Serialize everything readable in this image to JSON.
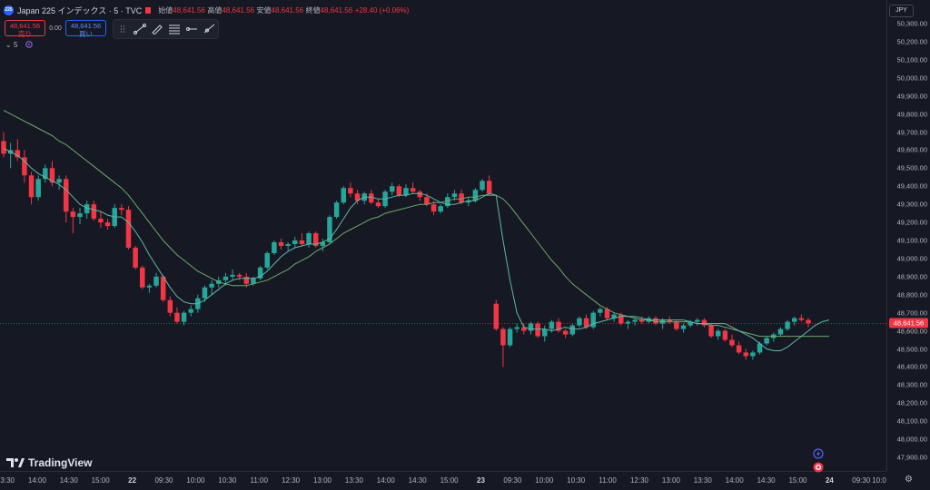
{
  "legend": {
    "badge": "225",
    "title": "Japan 225 インデックス · 5 · TVC",
    "open_label": "始値",
    "open_value": "48,641.56",
    "high_label": "高値",
    "high_value": "48,641.56",
    "low_label": "安値",
    "low_value": "48,641.56",
    "close_label": "終値",
    "close_value": "48,641.56",
    "change": "+28.40 (+0.06%)"
  },
  "trade": {
    "sell_price": "48,641.56",
    "sell_label": "売り",
    "spread": "0.00",
    "buy_price": "48,641.56",
    "buy_label": "買い"
  },
  "indicators": {
    "collapse_label": "5"
  },
  "currency": "JPY",
  "current_price": "48,641.56",
  "brand": "TradingView",
  "price_ticks": [
    "50,300.00",
    "50,200.00",
    "50,100.00",
    "50,000.00",
    "49,900.00",
    "49,800.00",
    "49,700.00",
    "49,600.00",
    "49,500.00",
    "49,400.00",
    "49,300.00",
    "49,200.00",
    "49,100.00",
    "49,000.00",
    "48,900.00",
    "48,800.00",
    "48,700.00",
    "48,600.00",
    "48,500.00",
    "48,400.00",
    "48,300.00",
    "48,200.00",
    "48,100.00",
    "48,000.00",
    "47,900.00"
  ],
  "time_ticks": [
    "13:30",
    "14:00",
    "14:30",
    "15:00",
    "22",
    "09:30",
    "10:00",
    "10:30",
    "11:00",
    "12:30",
    "13:00",
    "13:30",
    "14:00",
    "14:30",
    "15:00",
    "23",
    "09:30",
    "10:00",
    "10:30",
    "11:00",
    "12:30",
    "13:00",
    "13:30",
    "14:00",
    "14:30",
    "15:00",
    "24",
    "09:30",
    "10:0"
  ],
  "colors": {
    "up": "#26a69a",
    "down": "#f23645",
    "ma_fast": "#5fb7a8",
    "ma_slow": "#6fa86b",
    "background": "#161923"
  },
  "chart_data": {
    "type": "candlestick",
    "interval": "5",
    "y_range": [
      47900,
      50300
    ],
    "candles": [
      [
        49650,
        49700,
        49560,
        49580
      ],
      [
        49580,
        49640,
        49500,
        49600
      ],
      [
        49600,
        49660,
        49540,
        49560
      ],
      [
        49560,
        49600,
        49420,
        49460
      ],
      [
        49460,
        49480,
        49300,
        49340
      ],
      [
        49340,
        49460,
        49320,
        49440
      ],
      [
        49440,
        49520,
        49420,
        49500
      ],
      [
        49500,
        49540,
        49400,
        49420
      ],
      [
        49420,
        49460,
        49380,
        49440
      ],
      [
        49440,
        49460,
        49200,
        49260
      ],
      [
        49260,
        49280,
        49140,
        49230
      ],
      [
        49230,
        49280,
        49190,
        49250
      ],
      [
        49250,
        49320,
        49220,
        49300
      ],
      [
        49300,
        49320,
        49210,
        49220
      ],
      [
        49220,
        49260,
        49170,
        49200
      ],
      [
        49200,
        49220,
        49160,
        49180
      ],
      [
        49180,
        49300,
        49170,
        49280
      ],
      [
        49280,
        49300,
        49240,
        49270
      ],
      [
        49270,
        49290,
        49050,
        49060
      ],
      [
        49060,
        49070,
        48940,
        48950
      ],
      [
        48950,
        48960,
        48830,
        48840
      ],
      [
        48840,
        48860,
        48810,
        48850
      ],
      [
        48850,
        48920,
        48840,
        48900
      ],
      [
        48900,
        48910,
        48760,
        48770
      ],
      [
        48770,
        48790,
        48680,
        48700
      ],
      [
        48700,
        48730,
        48640,
        48650
      ],
      [
        48650,
        48710,
        48630,
        48700
      ],
      [
        48700,
        48740,
        48680,
        48720
      ],
      [
        48720,
        48800,
        48700,
        48780
      ],
      [
        48780,
        48850,
        48760,
        48840
      ],
      [
        48840,
        48880,
        48800,
        48860
      ],
      [
        48860,
        48900,
        48840,
        48880
      ],
      [
        48880,
        48920,
        48850,
        48900
      ],
      [
        48900,
        48940,
        48880,
        48910
      ],
      [
        48910,
        48920,
        48880,
        48900
      ],
      [
        48900,
        48920,
        48840,
        48860
      ],
      [
        48860,
        48900,
        48850,
        48890
      ],
      [
        48890,
        48960,
        48880,
        48950
      ],
      [
        48950,
        49040,
        48940,
        49030
      ],
      [
        49030,
        49100,
        49020,
        49090
      ],
      [
        49090,
        49110,
        49050,
        49070
      ],
      [
        49070,
        49090,
        49040,
        49080
      ],
      [
        49080,
        49120,
        49060,
        49100
      ],
      [
        49100,
        49140,
        49070,
        49080
      ],
      [
        49080,
        49150,
        49060,
        49140
      ],
      [
        49140,
        49150,
        49060,
        49070
      ],
      [
        49070,
        49110,
        49040,
        49090
      ],
      [
        49090,
        49240,
        49080,
        49230
      ],
      [
        49230,
        49320,
        49220,
        49310
      ],
      [
        49310,
        49400,
        49300,
        49390
      ],
      [
        49390,
        49420,
        49340,
        49360
      ],
      [
        49360,
        49380,
        49300,
        49320
      ],
      [
        49320,
        49370,
        49300,
        49360
      ],
      [
        49360,
        49380,
        49300,
        49310
      ],
      [
        49310,
        49330,
        49280,
        49290
      ],
      [
        49290,
        49380,
        49280,
        49370
      ],
      [
        49370,
        49420,
        49350,
        49400
      ],
      [
        49400,
        49410,
        49340,
        49350
      ],
      [
        49350,
        49410,
        49340,
        49390
      ],
      [
        49390,
        49420,
        49360,
        49370
      ],
      [
        49370,
        49380,
        49320,
        49340
      ],
      [
        49340,
        49360,
        49290,
        49300
      ],
      [
        49300,
        49320,
        49240,
        49260
      ],
      [
        49260,
        49300,
        49250,
        49290
      ],
      [
        49290,
        49360,
        49280,
        49340
      ],
      [
        49340,
        49380,
        49320,
        49360
      ],
      [
        49360,
        49380,
        49300,
        49310
      ],
      [
        49310,
        49340,
        49290,
        49320
      ],
      [
        49320,
        49390,
        49310,
        49380
      ],
      [
        49380,
        49440,
        49370,
        49430
      ],
      [
        49430,
        49460,
        49350,
        49360
      ],
      [
        48750,
        48770,
        48600,
        48610
      ],
      [
        48610,
        48620,
        48400,
        48520
      ],
      [
        48520,
        48620,
        48510,
        48610
      ],
      [
        48610,
        48640,
        48590,
        48620
      ],
      [
        48620,
        48640,
        48580,
        48600
      ],
      [
        48600,
        48650,
        48580,
        48640
      ],
      [
        48640,
        48650,
        48560,
        48570
      ],
      [
        48570,
        48630,
        48540,
        48610
      ],
      [
        48610,
        48660,
        48590,
        48650
      ],
      [
        48650,
        48670,
        48590,
        48600
      ],
      [
        48600,
        48610,
        48560,
        48580
      ],
      [
        48580,
        48640,
        48570,
        48630
      ],
      [
        48630,
        48680,
        48620,
        48670
      ],
      [
        48670,
        48690,
        48610,
        48620
      ],
      [
        48620,
        48710,
        48610,
        48700
      ],
      [
        48700,
        48730,
        48680,
        48720
      ],
      [
        48720,
        48730,
        48660,
        48670
      ],
      [
        48670,
        48700,
        48650,
        48690
      ],
      [
        48690,
        48700,
        48630,
        48640
      ],
      [
        48640,
        48660,
        48610,
        48650
      ],
      [
        48650,
        48670,
        48630,
        48660
      ],
      [
        48660,
        48680,
        48640,
        48650
      ],
      [
        48650,
        48680,
        48640,
        48670
      ],
      [
        48670,
        48680,
        48630,
        48640
      ],
      [
        48640,
        48670,
        48610,
        48660
      ],
      [
        48660,
        48680,
        48640,
        48650
      ],
      [
        48650,
        48660,
        48600,
        48610
      ],
      [
        48610,
        48640,
        48590,
        48630
      ],
      [
        48630,
        48660,
        48620,
        48650
      ],
      [
        48650,
        48670,
        48630,
        48660
      ],
      [
        48660,
        48670,
        48620,
        48630
      ],
      [
        48630,
        48640,
        48560,
        48570
      ],
      [
        48570,
        48610,
        48550,
        48600
      ],
      [
        48600,
        48610,
        48540,
        48550
      ],
      [
        48550,
        48580,
        48510,
        48520
      ],
      [
        48520,
        48540,
        48470,
        48480
      ],
      [
        48480,
        48500,
        48440,
        48460
      ],
      [
        48460,
        48490,
        48440,
        48480
      ],
      [
        48480,
        48540,
        48470,
        48530
      ],
      [
        48530,
        48570,
        48520,
        48560
      ],
      [
        48560,
        48590,
        48540,
        48580
      ],
      [
        48580,
        48620,
        48570,
        48610
      ],
      [
        48610,
        48660,
        48600,
        48650
      ],
      [
        48650,
        48680,
        48630,
        48670
      ],
      [
        48670,
        48690,
        48650,
        48660
      ],
      [
        48660,
        48670,
        48620,
        48641.56
      ]
    ],
    "ma_fast": [
      49610,
      49590,
      49570,
      49540,
      49500,
      49470,
      49450,
      49430,
      49410,
      49380,
      49340,
      49300,
      49280,
      49270,
      49260,
      49240,
      49230,
      49230,
      49200,
      49150,
      49090,
      49020,
      48960,
      48900,
      48840,
      48790,
      48760,
      48750,
      48750,
      48770,
      48800,
      48830,
      48860,
      48880,
      48890,
      48890,
      48890,
      48900,
      48930,
      48970,
      49010,
      49040,
      49060,
      49070,
      49080,
      49080,
      49090,
      49110,
      49160,
      49220,
      49280,
      49320,
      49340,
      49340,
      49330,
      49330,
      49340,
      49350,
      49350,
      49360,
      49360,
      49350,
      49330,
      49310,
      49300,
      49300,
      49310,
      49320,
      49320,
      49340,
      49360,
      49350,
      49100,
      48880,
      48700,
      48620,
      48610,
      48610,
      48610,
      48600,
      48610,
      48620,
      48610,
      48610,
      48620,
      48640,
      48650,
      48660,
      48670,
      48680,
      48680,
      48680,
      48670,
      48660,
      48660,
      48660,
      48660,
      48660,
      48660,
      48650,
      48640,
      48640,
      48640,
      48640,
      48640,
      48620,
      48600,
      48580,
      48560,
      48530,
      48500,
      48490,
      48490,
      48510,
      48540,
      48570,
      48600,
      48630,
      48650,
      48660
    ],
    "ma_slow": [
      49820,
      49800,
      49780,
      49760,
      49740,
      49720,
      49700,
      49680,
      49650,
      49630,
      49600,
      49570,
      49540,
      49510,
      49480,
      49450,
      49420,
      49390,
      49350,
      49300,
      49250,
      49200,
      49150,
      49100,
      49060,
      49020,
      48990,
      48960,
      48930,
      48910,
      48890,
      48870,
      48860,
      48850,
      48850,
      48850,
      48860,
      48870,
      48880,
      48900,
      48920,
      48940,
      48970,
      48990,
      49010,
      49040,
      49060,
      49080,
      49110,
      49140,
      49160,
      49180,
      49200,
      49220,
      49230,
      49250,
      49260,
      49270,
      49280,
      49290,
      49300,
      49300,
      49310,
      49310,
      49320,
      49330,
      49330,
      49340,
      49340,
      49350,
      49350,
      49350,
      49330,
      49290,
      49240,
      49190,
      49140,
      49090,
      49040,
      48990,
      48950,
      48900,
      48860,
      48830,
      48800,
      48770,
      48740,
      48720,
      48700,
      48690,
      48680,
      48670,
      48660,
      48660,
      48650,
      48650,
      48650,
      48650,
      48650,
      48650,
      48640,
      48640,
      48630,
      48630,
      48620,
      48610,
      48600,
      48590,
      48580,
      48570,
      48570,
      48570,
      48570,
      48570,
      48570,
      48570,
      48570,
      48570,
      48570,
      48570
    ]
  }
}
